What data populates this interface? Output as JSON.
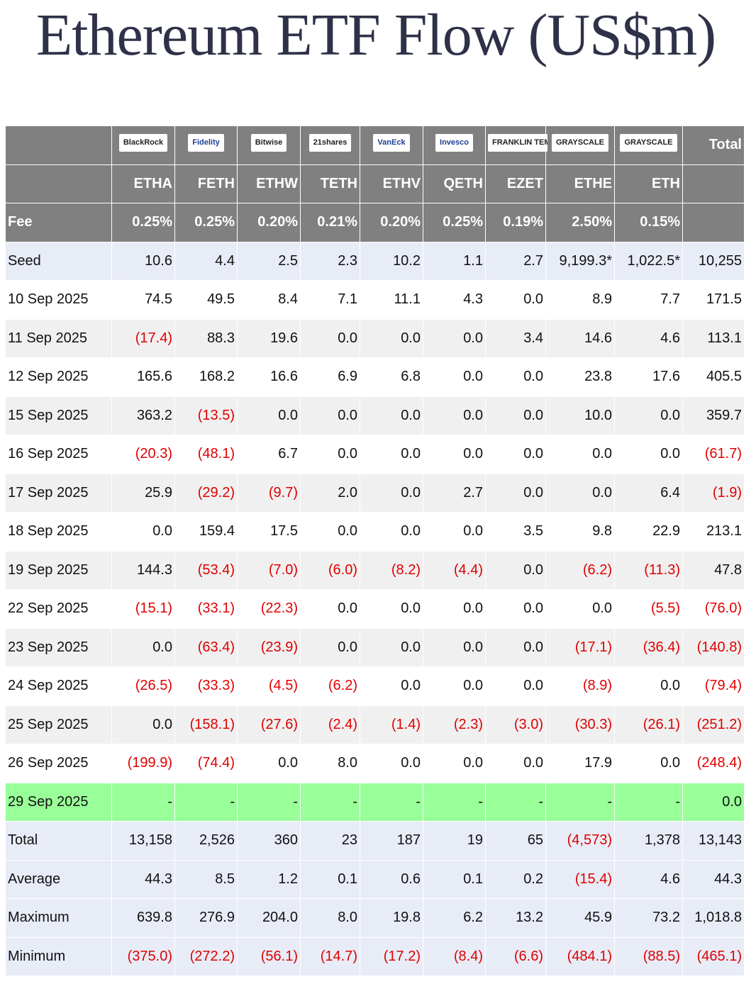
{
  "title": "Ethereum ETF Flow (US$m)",
  "table": {
    "logos": [
      "BlackRock",
      "Fidelity",
      "Bitwise",
      "21shares",
      "VanEck",
      "Invesco",
      "FRANKLIN TEMPLETON",
      "GRAYSCALE",
      "GRAYSCALE"
    ],
    "total_header": "Total",
    "tickers": [
      "ETHA",
      "FETH",
      "ETHW",
      "TETH",
      "ETHV",
      "QETH",
      "EZET",
      "ETHE",
      "ETH"
    ],
    "fee_label": "Fee",
    "fees": [
      "0.25%",
      "0.25%",
      "0.20%",
      "0.21%",
      "0.20%",
      "0.25%",
      "0.19%",
      "2.50%",
      "0.15%"
    ],
    "rows": [
      [
        "Seed",
        "10.6",
        "4.4",
        "2.5",
        "2.3",
        "10.2",
        "1.1",
        "2.7",
        "9,199.3*",
        "1,022.5*",
        "10,255"
      ],
      [
        "10 Sep 2025",
        "74.5",
        "49.5",
        "8.4",
        "7.1",
        "11.1",
        "4.3",
        "0.0",
        "8.9",
        "7.7",
        "171.5"
      ],
      [
        "11 Sep 2025",
        "(17.4)",
        "88.3",
        "19.6",
        "0.0",
        "0.0",
        "0.0",
        "3.4",
        "14.6",
        "4.6",
        "113.1"
      ],
      [
        "12 Sep 2025",
        "165.6",
        "168.2",
        "16.6",
        "6.9",
        "6.8",
        "0.0",
        "0.0",
        "23.8",
        "17.6",
        "405.5"
      ],
      [
        "15 Sep 2025",
        "363.2",
        "(13.5)",
        "0.0",
        "0.0",
        "0.0",
        "0.0",
        "0.0",
        "10.0",
        "0.0",
        "359.7"
      ],
      [
        "16 Sep 2025",
        "(20.3)",
        "(48.1)",
        "6.7",
        "0.0",
        "0.0",
        "0.0",
        "0.0",
        "0.0",
        "0.0",
        "(61.7)"
      ],
      [
        "17 Sep 2025",
        "25.9",
        "(29.2)",
        "(9.7)",
        "2.0",
        "0.0",
        "2.7",
        "0.0",
        "0.0",
        "6.4",
        "(1.9)"
      ],
      [
        "18 Sep 2025",
        "0.0",
        "159.4",
        "17.5",
        "0.0",
        "0.0",
        "0.0",
        "3.5",
        "9.8",
        "22.9",
        "213.1"
      ],
      [
        "19 Sep 2025",
        "144.3",
        "(53.4)",
        "(7.0)",
        "(6.0)",
        "(8.2)",
        "(4.4)",
        "0.0",
        "(6.2)",
        "(11.3)",
        "47.8"
      ],
      [
        "22 Sep 2025",
        "(15.1)",
        "(33.1)",
        "(22.3)",
        "0.0",
        "0.0",
        "0.0",
        "0.0",
        "0.0",
        "(5.5)",
        "(76.0)"
      ],
      [
        "23 Sep 2025",
        "0.0",
        "(63.4)",
        "(23.9)",
        "0.0",
        "0.0",
        "0.0",
        "0.0",
        "(17.1)",
        "(36.4)",
        "(140.8)"
      ],
      [
        "24 Sep 2025",
        "(26.5)",
        "(33.3)",
        "(4.5)",
        "(6.2)",
        "0.0",
        "0.0",
        "0.0",
        "(8.9)",
        "0.0",
        "(79.4)"
      ],
      [
        "25 Sep 2025",
        "0.0",
        "(158.1)",
        "(27.6)",
        "(2.4)",
        "(1.4)",
        "(2.3)",
        "(3.0)",
        "(30.3)",
        "(26.1)",
        "(251.2)"
      ],
      [
        "26 Sep 2025",
        "(199.9)",
        "(74.4)",
        "0.0",
        "8.0",
        "0.0",
        "0.0",
        "0.0",
        "17.9",
        "0.0",
        "(248.4)"
      ],
      [
        "29 Sep 2025",
        "-",
        "-",
        "-",
        "-",
        "-",
        "-",
        "-",
        "-",
        "-",
        "0.0"
      ],
      [
        "Total",
        "13,158",
        "2,526",
        "360",
        "23",
        "187",
        "19",
        "65",
        "(4,573)",
        "1,378",
        "13,143"
      ],
      [
        "Average",
        "44.3",
        "8.5",
        "1.2",
        "0.1",
        "0.6",
        "0.1",
        "0.2",
        "(15.4)",
        "4.6",
        "44.3"
      ],
      [
        "Maximum",
        "639.8",
        "276.9",
        "204.0",
        "8.0",
        "19.8",
        "6.2",
        "13.2",
        "45.9",
        "73.2",
        "1,018.8"
      ],
      [
        "Minimum",
        "(375.0)",
        "(272.2)",
        "(56.1)",
        "(14.7)",
        "(17.2)",
        "(8.4)",
        "(6.6)",
        "(484.1)",
        "(88.5)",
        "(465.1)"
      ]
    ]
  }
}
